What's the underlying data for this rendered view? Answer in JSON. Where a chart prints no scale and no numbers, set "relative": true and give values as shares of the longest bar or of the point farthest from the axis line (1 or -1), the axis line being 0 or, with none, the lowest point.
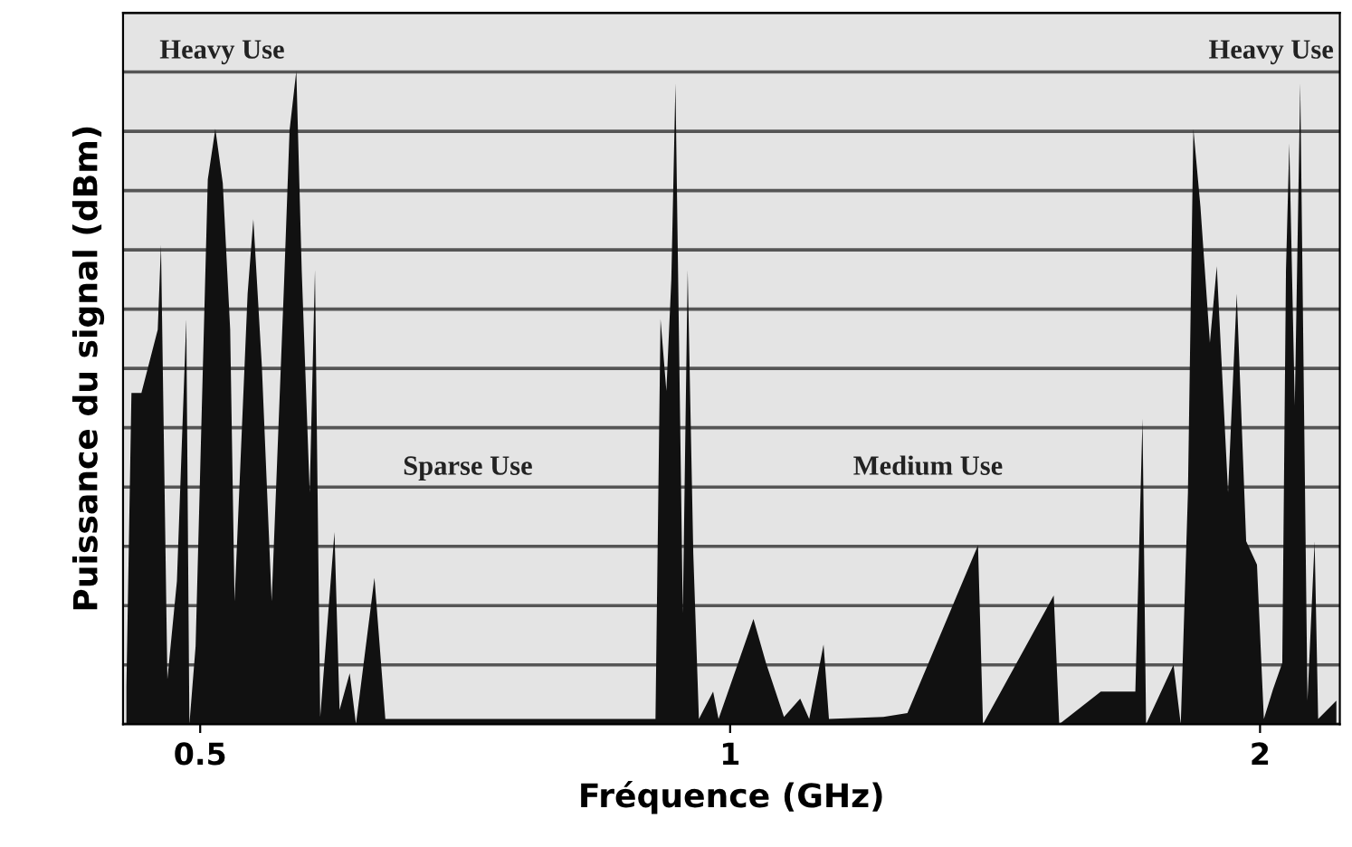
{
  "chart_data": {
    "type": "area",
    "relative": true,
    "xlabel": "Fréquence (GHz)",
    "ylabel": "Puissance du signal (dBm)",
    "log": "x",
    "xlim": [
      0.452,
      2.22
    ],
    "xticks": [
      0.5,
      1,
      2
    ],
    "grid": "y",
    "annotations": [
      "Heavy Use",
      "Sparse Use",
      "Medium Use",
      "Heavy Use"
    ],
    "series": [
      {
        "color": "#111111",
        "x": [
          0.454,
          0.457,
          0.463,
          0.473,
          0.475,
          0.479,
          0.485,
          0.491,
          0.493,
          0.497,
          0.505,
          0.51,
          0.515,
          0.52,
          0.523,
          0.532,
          0.536,
          0.542,
          0.549,
          0.558,
          0.562,
          0.567,
          0.571,
          0.577,
          0.581,
          0.585,
          0.596,
          0.6,
          0.608,
          0.613,
          0.628,
          0.637,
          0.907,
          0.913,
          0.92,
          0.926,
          0.931,
          0.94,
          0.946,
          0.953,
          0.96,
          0.978,
          0.985,
          1.031,
          1.048,
          1.073,
          1.096,
          1.109,
          1.13,
          1.138,
          1.222,
          1.261,
          1.383,
          1.392,
          1.527,
          1.538,
          1.624,
          1.699,
          1.715,
          1.723,
          1.786,
          1.803,
          1.82,
          1.833,
          1.85,
          1.873,
          1.89,
          1.918,
          1.94,
          1.964,
          1.992,
          2.01,
          2.034,
          2.059,
          2.069,
          2.078,
          2.093,
          2.108,
          2.128,
          2.148,
          2.158,
          2.21
        ],
        "values": [
          0.058,
          0.507,
          0.507,
          0.604,
          0.734,
          0.069,
          0.219,
          0.62,
          0,
          0.119,
          0.834,
          0.911,
          0.828,
          0.604,
          0.188,
          0.659,
          0.773,
          0.548,
          0.188,
          0.676,
          0.909,
          1,
          0.695,
          0.355,
          0.695,
          0.011,
          0.294,
          0.022,
          0.078,
          0,
          0.224,
          0.008,
          0.008,
          0.62,
          0.51,
          0.681,
          0.981,
          0.169,
          0.695,
          0.26,
          0.008,
          0.05,
          0.008,
          0.161,
          0.094,
          0.011,
          0.039,
          0.008,
          0.122,
          0.008,
          0.011,
          0.017,
          0.274,
          0,
          0.197,
          0,
          0.05,
          0.05,
          0.468,
          0,
          0.091,
          0,
          0.355,
          0.911,
          0.792,
          0.584,
          0.701,
          0.355,
          0.659,
          0.28,
          0.244,
          0.008,
          0.053,
          0.094,
          0.695,
          0.889,
          0.488,
          0.981,
          0.036,
          0.28,
          0.008,
          0.036
        ]
      }
    ]
  }
}
